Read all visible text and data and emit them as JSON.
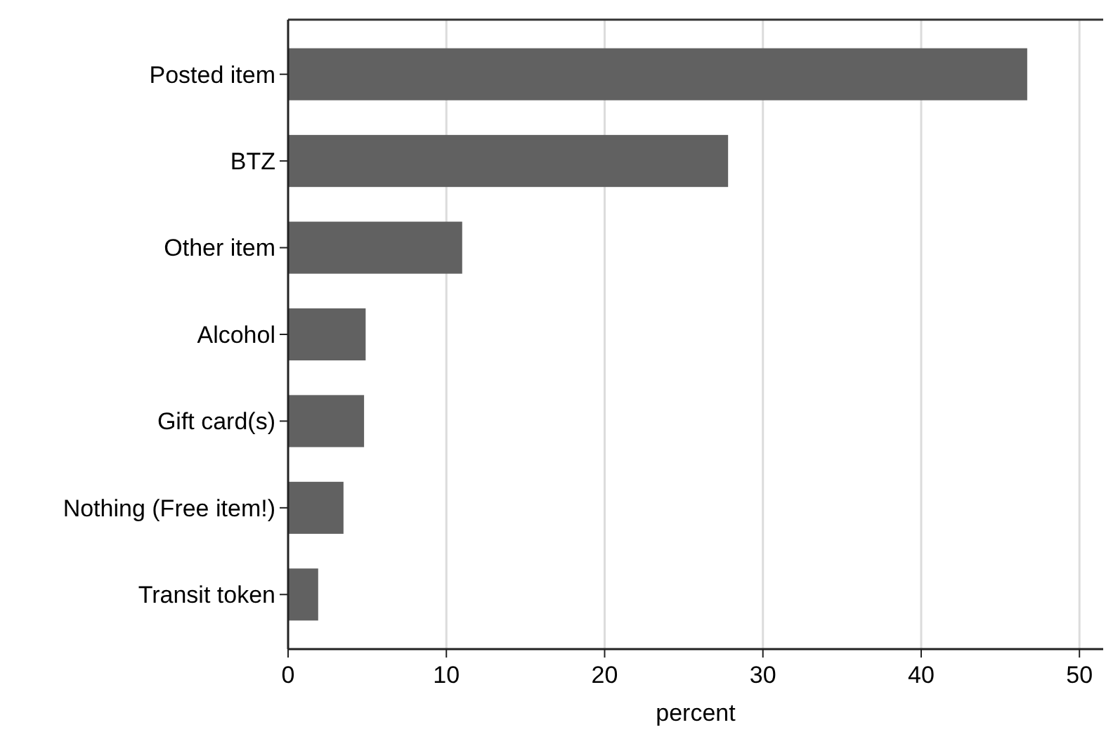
{
  "chart_data": {
    "type": "bar",
    "orientation": "horizontal",
    "xlabel": "percent",
    "categories": [
      "Posted item",
      "BTZ",
      "Other item",
      "Alcohol",
      "Gift card(s)",
      "Nothing (Free item!)",
      "Transit token"
    ],
    "values": [
      46.7,
      27.8,
      11.0,
      4.9,
      4.8,
      3.5,
      1.9
    ],
    "color": "#616161",
    "xlim": [
      0,
      51.5
    ],
    "xticks": [
      0,
      10,
      20,
      30,
      40,
      50
    ],
    "grid": "x"
  }
}
